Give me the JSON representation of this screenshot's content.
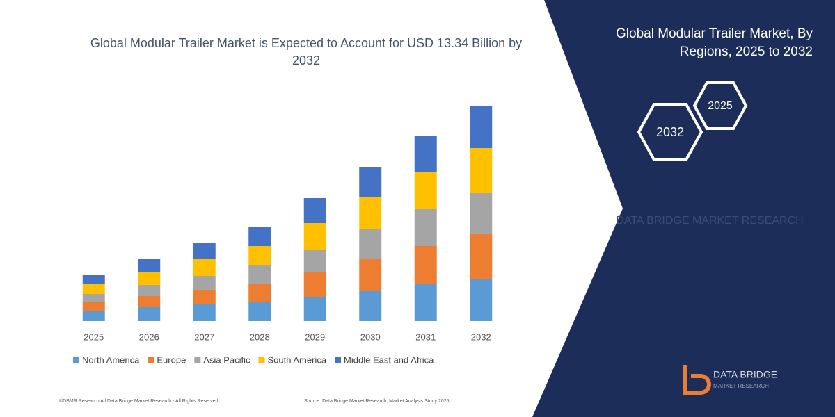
{
  "chart_data": {
    "type": "stacked-bar",
    "title": "Global Modular Trailer Market is Expected to Account for USD 13.34 Billion by 2032",
    "categories": [
      "2025",
      "2026",
      "2027",
      "2028",
      "2029",
      "2030",
      "2031",
      "2032"
    ],
    "series": [
      {
        "name": "North America",
        "color": "#5b9bd5",
        "values": [
          15,
          20,
          24,
          28,
          35,
          44,
          54,
          61
        ]
      },
      {
        "name": "Europe",
        "color": "#ed7d31",
        "values": [
          12,
          16,
          21,
          26,
          35,
          45,
          54,
          64
        ]
      },
      {
        "name": "Asia Pacific",
        "color": "#a5a5a5",
        "values": [
          12,
          16,
          20,
          26,
          33,
          43,
          53,
          60
        ]
      },
      {
        "name": "South America",
        "color": "#ffc000",
        "values": [
          14,
          19,
          24,
          28,
          38,
          46,
          53,
          64
        ]
      },
      {
        "name": "Middle East and Africa",
        "color": "#4472c4",
        "values": [
          14,
          18,
          23,
          27,
          36,
          44,
          53,
          61
        ]
      }
    ]
  },
  "panel": {
    "title": "Global Modular Trailer Market, By Regions, 2025 to 2032",
    "hex_labels": [
      "2025",
      "2032"
    ],
    "watermark": "DATA BRIDGE MARKET RESEARCH",
    "logo": "DATA BRIDGE",
    "logo_sub": "MARKET RESEARCH"
  },
  "footer": [
    "©DBMR Research All Data Bridge Market Research - All Rights Reserved",
    "Source: Data Bridge Market Research, Market Analysis Study 2025"
  ]
}
